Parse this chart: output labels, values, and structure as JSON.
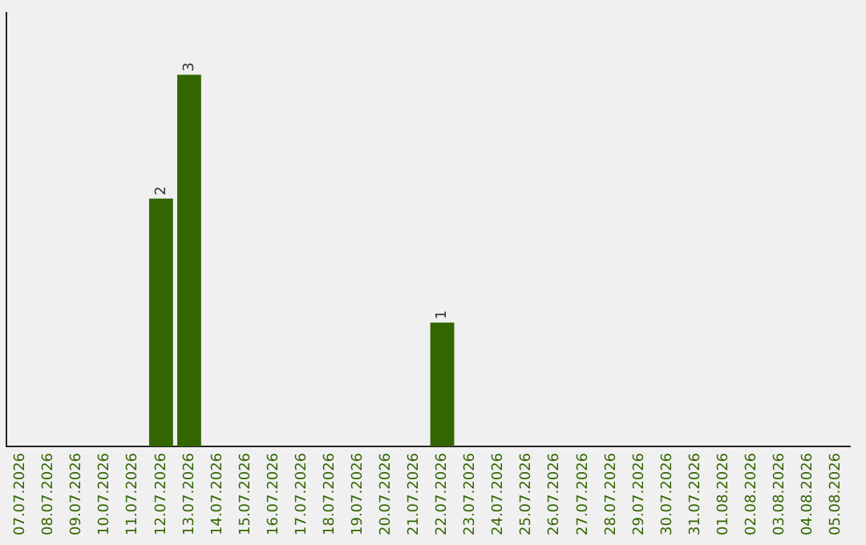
{
  "chart_data": {
    "type": "bar",
    "categories": [
      "07.07.2026",
      "08.07.2026",
      "09.07.2026",
      "10.07.2026",
      "11.07.2026",
      "12.07.2026",
      "13.07.2026",
      "14.07.2026",
      "15.07.2026",
      "16.07.2026",
      "17.07.2026",
      "18.07.2026",
      "19.07.2026",
      "20.07.2026",
      "21.07.2026",
      "22.07.2026",
      "23.07.2026",
      "24.07.2026",
      "25.07.2026",
      "26.07.2026",
      "27.07.2026",
      "28.07.2026",
      "29.07.2026",
      "30.07.2026",
      "31.07.2026",
      "01.08.2026",
      "02.08.2026",
      "03.08.2026",
      "04.08.2026",
      "05.08.2026"
    ],
    "values": [
      0,
      0,
      0,
      0,
      0,
      2,
      3,
      0,
      0,
      0,
      0,
      0,
      0,
      0,
      0,
      1,
      0,
      0,
      0,
      0,
      0,
      0,
      0,
      0,
      0,
      0,
      0,
      0,
      0,
      0
    ],
    "value_labels": [
      null,
      null,
      null,
      null,
      null,
      "2",
      "3",
      null,
      null,
      null,
      null,
      null,
      null,
      null,
      null,
      "1",
      null,
      null,
      null,
      null,
      null,
      null,
      null,
      null,
      null,
      null,
      null,
      null,
      null,
      null
    ],
    "color": "#336600",
    "tick_labels": "x",
    "grid": false,
    "legend": false
  }
}
